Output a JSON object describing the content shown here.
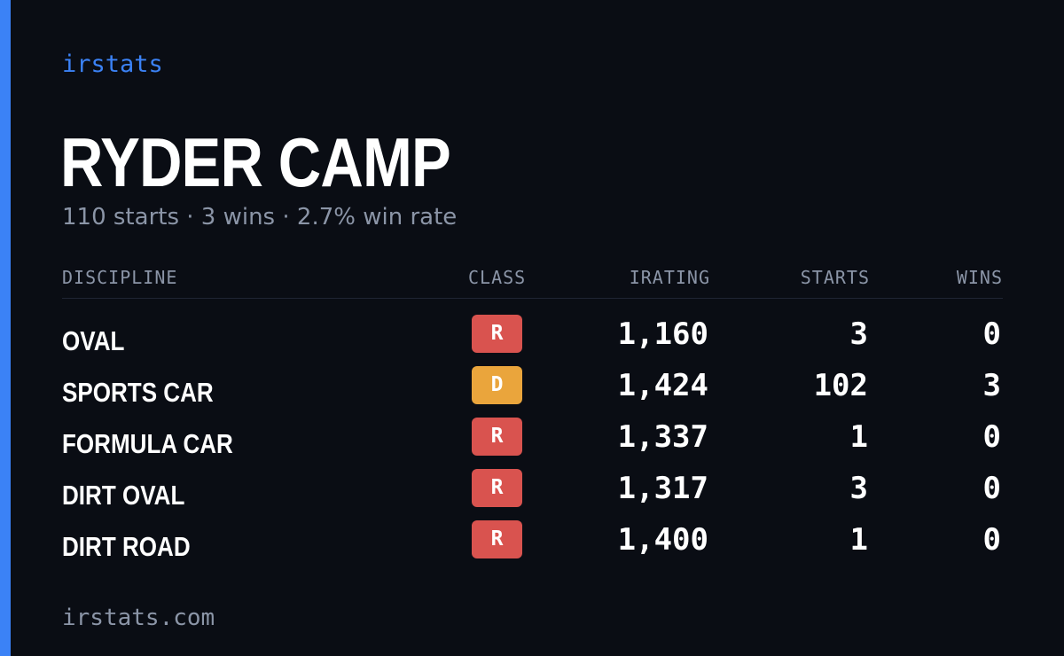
{
  "brand": "irstats",
  "driver": {
    "name": "RYDER CAMP",
    "summary": "110 starts · 3 wins · 2.7% win rate"
  },
  "table": {
    "headers": {
      "discipline": "DISCIPLINE",
      "class": "CLASS",
      "irating": "IRATING",
      "starts": "STARTS",
      "wins": "WINS"
    },
    "rows": [
      {
        "discipline": "OVAL",
        "class": "R",
        "irating": "1,160",
        "starts": "3",
        "wins": "0"
      },
      {
        "discipline": "SPORTS CAR",
        "class": "D",
        "irating": "1,424",
        "starts": "102",
        "wins": "3"
      },
      {
        "discipline": "FORMULA CAR",
        "class": "R",
        "irating": "1,337",
        "starts": "1",
        "wins": "0"
      },
      {
        "discipline": "DIRT OVAL",
        "class": "R",
        "irating": "1,317",
        "starts": "3",
        "wins": "0"
      },
      {
        "discipline": "DIRT ROAD",
        "class": "R",
        "irating": "1,400",
        "starts": "1",
        "wins": "0"
      }
    ]
  },
  "colors": {
    "accent": "#3b82f6",
    "background": "#0a0d14",
    "class_R": "#d9534f",
    "class_D": "#eaa53c"
  },
  "footer": "irstats.com"
}
